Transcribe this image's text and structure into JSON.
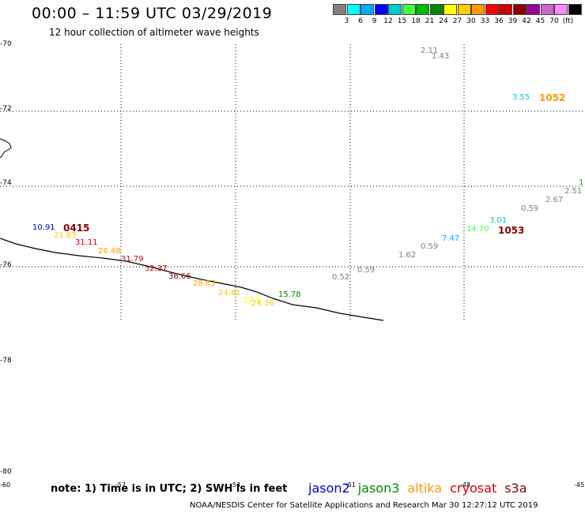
{
  "title": "00:00 – 11:59 UTC 03/29/2019",
  "subtitle": "12 hour collection of altimeter wave heights",
  "legend": {
    "colors": [
      "#808080",
      "#00ffff",
      "#00aaff",
      "#0000ff",
      "#00cccc",
      "#44ff44",
      "#00bb00",
      "#008800",
      "#ffff00",
      "#ffcc00",
      "#ff9900",
      "#ff0000",
      "#cc0000",
      "#880000",
      "#990099",
      "#cc66cc",
      "#ff88ff",
      "#000000"
    ],
    "labels": [
      "3",
      "6",
      "9",
      "12",
      "15",
      "18",
      "21",
      "24",
      "27",
      "30",
      "33",
      "36",
      "39",
      "42",
      "45",
      "70",
      "(ft)"
    ]
  },
  "lat_labels": [
    "-70",
    "-72",
    "-74",
    "-76",
    "-78",
    "-80"
  ],
  "lon_labels": [
    "-60",
    "-57",
    "-54",
    "-51",
    "-48",
    "-45"
  ],
  "wave_labels": [
    {
      "text": "2.11",
      "color": "#808080"
    },
    {
      "text": "1.43",
      "color": "#808080"
    },
    {
      "text": "3.55",
      "color": "#00cccc"
    },
    {
      "text": "1052",
      "color": "#ff9900"
    },
    {
      "text": "10.91",
      "color": "#0000cc"
    },
    {
      "text": "0415",
      "color": "#880000"
    },
    {
      "text": "21.83",
      "color": "#ffcc00"
    },
    {
      "text": "31.11",
      "color": "#cc0000"
    },
    {
      "text": "26.48",
      "color": "#ff9900"
    },
    {
      "text": "31.79",
      "color": "#cc0000"
    },
    {
      "text": "32.37",
      "color": "#cc0000"
    },
    {
      "text": "36.66",
      "color": "#880000"
    },
    {
      "text": "28.63",
      "color": "#ff9900"
    },
    {
      "text": "24.81",
      "color": "#ffcc00"
    },
    {
      "text": "22.6",
      "color": "#ffff00"
    },
    {
      "text": "24.36",
      "color": "#ffcc00"
    },
    {
      "text": "15.78",
      "color": "#008800"
    },
    {
      "text": "0.52",
      "color": "#808080"
    },
    {
      "text": "0.59",
      "color": "#808080"
    },
    {
      "text": "1.62",
      "color": "#808080"
    },
    {
      "text": "0.59",
      "color": "#808080"
    },
    {
      "text": "7.47",
      "color": "#00aaff"
    },
    {
      "text": "14.70",
      "color": "#44ff44"
    },
    {
      "text": "3.01",
      "color": "#00cccc"
    },
    {
      "text": "1053",
      "color": "#880000"
    },
    {
      "text": "0.59",
      "color": "#808080"
    },
    {
      "text": "2.67",
      "color": "#808080"
    },
    {
      "text": "2.51",
      "color": "#808080"
    },
    {
      "text": "1",
      "color": "#00bb00"
    }
  ],
  "note": "note: 1) Time is in UTC; 2) SWH is in feet",
  "satellites": [
    {
      "name": "jason2",
      "color": "#0000cc"
    },
    {
      "name": "jason3",
      "color": "#008800"
    },
    {
      "name": "altika",
      "color": "#ff9900"
    },
    {
      "name": "cryosat",
      "color": "#cc0000"
    },
    {
      "name": "s3a",
      "color": "#880000"
    }
  ],
  "credit": "NOAA/NESDIS Center for Satellite Applications and Research   Mar 30 12:27:12 UTC 2019"
}
